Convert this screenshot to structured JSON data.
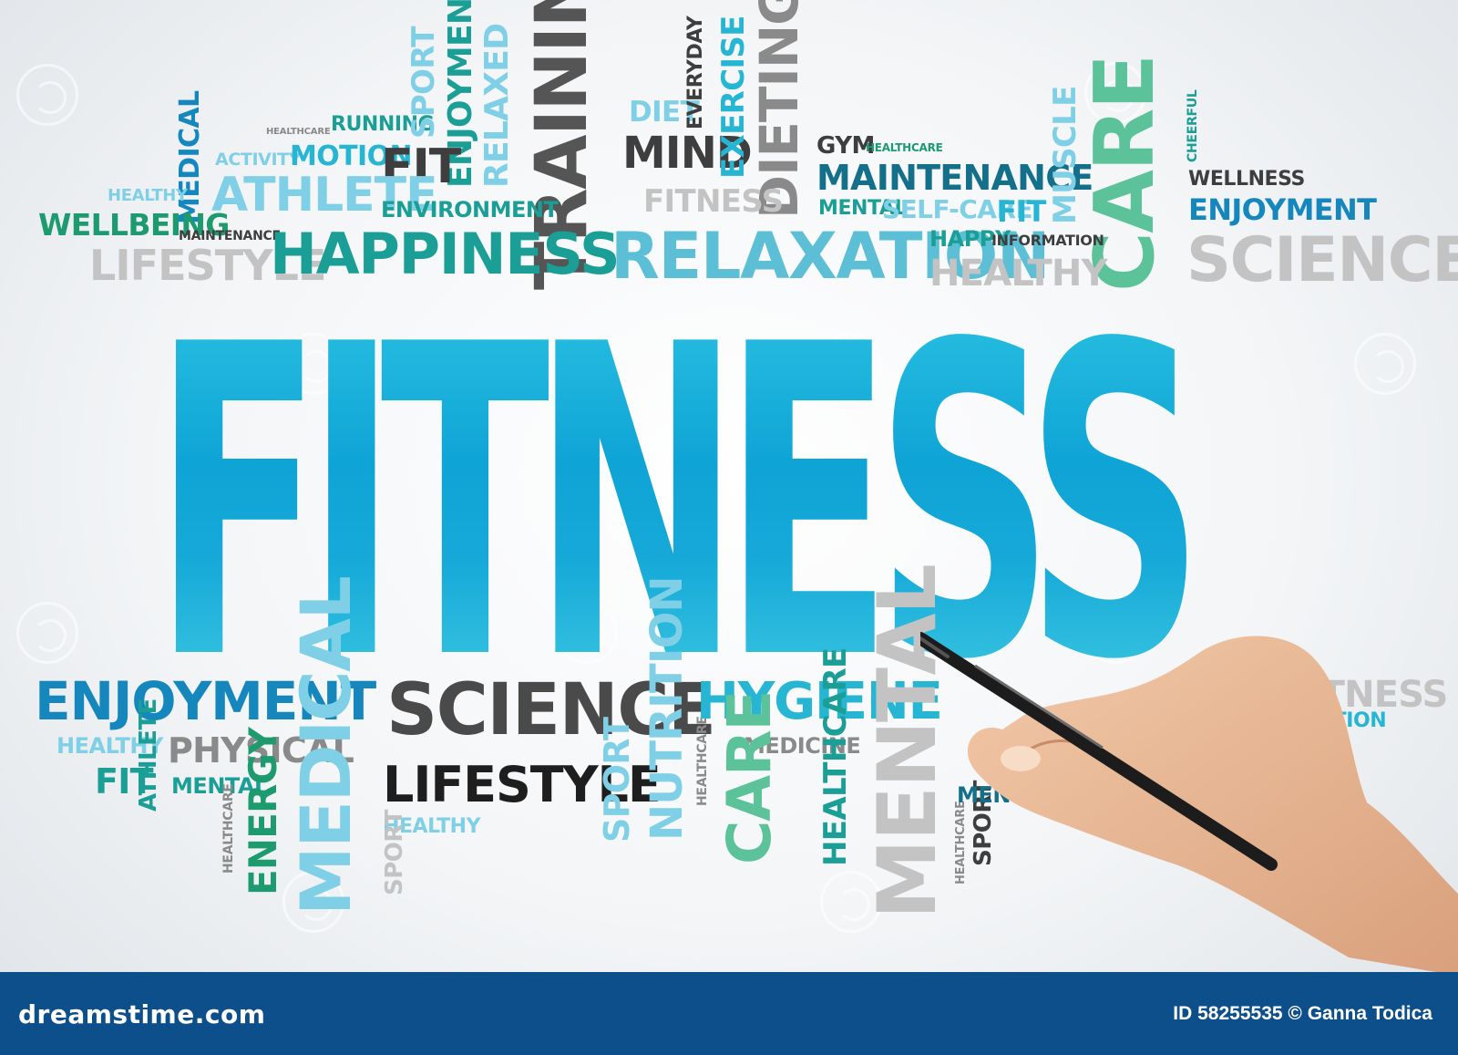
{
  "main_word": "FITNESS",
  "colors": {
    "teal": "#1a9e96",
    "cyan": "#27b5d4",
    "blue": "#1587bd",
    "light_blue": "#7fd0e6",
    "green": "#1d9a6e",
    "dark": "#3e3e3e",
    "gray": "#8a8a8a",
    "light_gray": "#c3c3c3",
    "footer_bg": "#0d4f8a"
  },
  "words": [
    {
      "text": "RUNNING",
      "color": "#1a9e96"
    },
    {
      "text": "HEALTHCARE",
      "color": "#8a8a8a"
    },
    {
      "text": "SPORT",
      "color": "#7fd0e6"
    },
    {
      "text": "ENJOYMENT",
      "color": "#1a9e96"
    },
    {
      "text": "RELAXED",
      "color": "#7fd0e6"
    },
    {
      "text": "TRAINING",
      "color": "#555555"
    },
    {
      "text": "DIET",
      "color": "#7fd0e6"
    },
    {
      "text": "EVERYDAY",
      "color": "#3e3e3e"
    },
    {
      "text": "MIND",
      "color": "#3e3e3e"
    },
    {
      "text": "EXERCISE",
      "color": "#27b5d4"
    },
    {
      "text": "DIETING",
      "color": "#8a8a8a"
    },
    {
      "text": "GYM",
      "color": "#3e3e3e"
    },
    {
      "text": "HEALTHCARE",
      "color": "#1d9a6e"
    },
    {
      "text": "MAINTENANCE",
      "color": "#136f8a"
    },
    {
      "text": "MEDICAL",
      "color": "#1587bd"
    },
    {
      "text": "ACTIVITY",
      "color": "#7fd0e6"
    },
    {
      "text": "MOTION",
      "color": "#27b5d4"
    },
    {
      "text": "FIT",
      "color": "#3e3e3e"
    },
    {
      "text": "HEALTHY",
      "color": "#7fd0e6"
    },
    {
      "text": "ATHLETE",
      "color": "#7fd0e6"
    },
    {
      "text": "ENVIRONMENT",
      "color": "#1a9e96"
    },
    {
      "text": "FITNESS",
      "color": "#c3c3c3"
    },
    {
      "text": "MENTAL",
      "color": "#1a9e96"
    },
    {
      "text": "SELF-CARE",
      "color": "#7fd0e6"
    },
    {
      "text": "FIT",
      "color": "#27b5d4"
    },
    {
      "text": "MUSCLE",
      "color": "#7fd0e6"
    },
    {
      "text": "CARE",
      "color": "#5cc29a"
    },
    {
      "text": "CHEERFUL",
      "color": "#1a9e96"
    },
    {
      "text": "WELLNESS",
      "color": "#3e3e3e"
    },
    {
      "text": "ENJOYMENT",
      "color": "#1587bd"
    },
    {
      "text": "WELLBEING",
      "color": "#1d9a6e"
    },
    {
      "text": "MAINTENANCE",
      "color": "#3e3e3e"
    },
    {
      "text": "LIFESTYLE",
      "color": "#c3c3c3"
    },
    {
      "text": "HAPPINESS",
      "color": "#1a9e96"
    },
    {
      "text": "RELAXATION",
      "color": "#5dbfd6"
    },
    {
      "text": "HAPPY",
      "color": "#1a9e96"
    },
    {
      "text": "INFORMATION",
      "color": "#3e3e3e"
    },
    {
      "text": "HEALTHY",
      "color": "#c3c3c3"
    },
    {
      "text": "SCIENCE",
      "color": "#c3c3c3"
    },
    {
      "text": "ENJOYMENT",
      "color": "#1587bd"
    },
    {
      "text": "HEALTHY",
      "color": "#7fd0e6"
    },
    {
      "text": "ATHLETE",
      "color": "#1a9e96"
    },
    {
      "text": "PHYSICAL",
      "color": "#8a8a8a"
    },
    {
      "text": "FIT",
      "color": "#1a9e96"
    },
    {
      "text": "MENTAL",
      "color": "#1a9e96"
    },
    {
      "text": "HEALTHCARE",
      "color": "#8a8a8a"
    },
    {
      "text": "ENERGY",
      "color": "#1d9a6e"
    },
    {
      "text": "MEDICAL",
      "color": "#7fd0e6"
    },
    {
      "text": "SCIENCE",
      "color": "#4a4a4a"
    },
    {
      "text": "LIFESTYLE",
      "color": "#1e1e1e"
    },
    {
      "text": "HEALTHY",
      "color": "#7fd0e6"
    },
    {
      "text": "SPORT",
      "color": "#c3c3c3"
    },
    {
      "text": "SPORT",
      "color": "#7fd0e6"
    },
    {
      "text": "NUTRITION",
      "color": "#7fd0e6"
    },
    {
      "text": "HEALTHCARE",
      "color": "#8a8a8a"
    },
    {
      "text": "HYGIENE",
      "color": "#27b5d4"
    },
    {
      "text": "MEDICINE",
      "color": "#8a8a8a"
    },
    {
      "text": "CARE",
      "color": "#5cc29a"
    },
    {
      "text": "HEALTHCARE",
      "color": "#1a9e96"
    },
    {
      "text": "MENTAL",
      "color": "#c3c3c3"
    },
    {
      "text": "HEALTHCARE",
      "color": "#8a8a8a"
    },
    {
      "text": "SPORT",
      "color": "#3e3e3e"
    },
    {
      "text": "MENTAL",
      "color": "#136f8a"
    },
    {
      "text": "FITNESS",
      "color": "#c3c3c3"
    },
    {
      "text": "RELAXATION",
      "color": "#27b5d4"
    }
  ],
  "footer": {
    "site": "dreamstime.com",
    "credit": "ID 58255535 © Ganna Todica"
  }
}
